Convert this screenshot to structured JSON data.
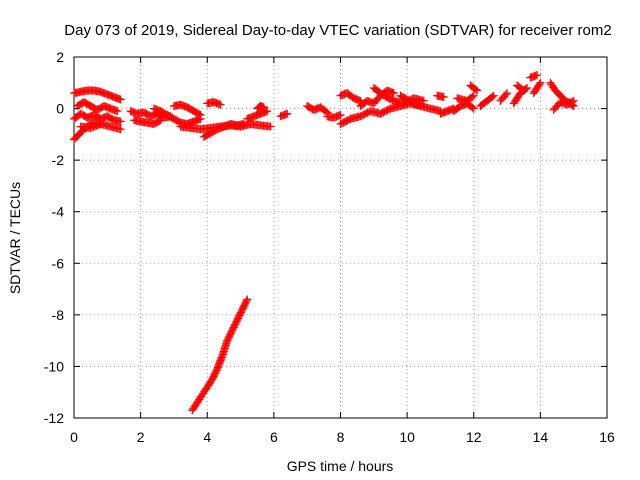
{
  "chart_data": {
    "type": "scatter",
    "title": "Day 073 of 2019, Sidereal Day-to-day VTEC variation (SDTVAR) for receiver rom2",
    "xlabel": "GPS time / hours",
    "ylabel": "SDTVAR / TECUs",
    "xlim": [
      0,
      16
    ],
    "ylim": [
      -12,
      2
    ],
    "xticks": [
      0,
      2,
      4,
      6,
      8,
      10,
      12,
      14,
      16
    ],
    "yticks": [
      2,
      0,
      -2,
      -4,
      -6,
      -8,
      -10,
      -12
    ],
    "grid": true,
    "marker": "plus",
    "color": "#ff0000",
    "segments": [
      {
        "x": [
          0.0,
          0.2,
          0.4,
          0.6,
          0.8,
          1.0,
          1.2,
          1.4
        ],
        "y": [
          0.6,
          0.65,
          0.7,
          0.7,
          0.65,
          0.55,
          0.45,
          0.35
        ]
      },
      {
        "x": [
          0.1,
          0.3,
          0.5,
          0.7,
          0.9,
          1.1,
          1.3
        ],
        "y": [
          0.1,
          0.25,
          0.1,
          -0.05,
          0.1,
          0.0,
          -0.1
        ]
      },
      {
        "x": [
          0.0,
          0.2,
          0.4,
          0.6,
          0.8,
          1.0,
          1.2,
          1.4
        ],
        "y": [
          -0.4,
          -0.2,
          -0.35,
          -0.25,
          -0.4,
          -0.3,
          -0.45,
          -0.5
        ]
      },
      {
        "x": [
          0.0,
          0.15,
          0.3,
          0.45,
          0.6,
          0.8
        ],
        "y": [
          -1.2,
          -1.0,
          -0.8,
          -0.65,
          -0.55,
          -0.6
        ]
      },
      {
        "x": [
          0.2,
          0.5,
          0.8,
          1.1,
          1.4
        ],
        "y": [
          -0.7,
          -0.75,
          -0.6,
          -0.7,
          -0.8
        ]
      },
      {
        "x": [
          1.7,
          1.9,
          2.1,
          2.3,
          2.5,
          2.7,
          2.9
        ],
        "y": [
          -0.1,
          -0.2,
          -0.15,
          -0.3,
          -0.2,
          -0.35,
          -0.3
        ]
      },
      {
        "x": [
          1.8,
          2.0,
          2.2,
          2.4,
          2.6
        ],
        "y": [
          -0.45,
          -0.5,
          -0.55,
          -0.6,
          -0.45
        ]
      },
      {
        "x": [
          2.4,
          2.6,
          2.8,
          3.0,
          3.2,
          3.4,
          3.6,
          3.8
        ],
        "y": [
          0.0,
          -0.1,
          -0.25,
          -0.4,
          -0.55,
          -0.6,
          -0.5,
          -0.4
        ]
      },
      {
        "x": [
          3.0,
          3.2,
          3.4,
          3.6,
          3.8
        ],
        "y": [
          0.1,
          0.15,
          0.05,
          -0.1,
          -0.25
        ]
      },
      {
        "x": [
          3.2,
          3.5,
          3.8,
          4.1,
          4.4,
          4.7,
          5.0,
          5.3,
          5.6,
          5.9
        ],
        "y": [
          -0.7,
          -0.75,
          -0.8,
          -0.75,
          -0.7,
          -0.65,
          -0.7,
          -0.6,
          -0.65,
          -0.7
        ]
      },
      {
        "x": [
          3.9,
          4.1,
          4.3,
          4.5,
          4.7,
          4.9,
          5.1
        ],
        "y": [
          -1.1,
          -0.95,
          -0.8,
          -0.7,
          -0.6,
          -0.65,
          -0.6
        ]
      },
      {
        "x": [
          4.0,
          4.2,
          4.4
        ],
        "y": [
          0.2,
          0.25,
          0.15
        ]
      },
      {
        "x": [
          5.2,
          5.4,
          5.6,
          5.8
        ],
        "y": [
          -0.4,
          -0.3,
          -0.2,
          -0.1
        ]
      },
      {
        "x": [
          5.5,
          5.6,
          5.7
        ],
        "y": [
          0.0,
          0.1,
          0.05
        ]
      },
      {
        "x": [
          6.2,
          6.4
        ],
        "y": [
          -0.3,
          -0.2
        ]
      },
      {
        "x": [
          7.0,
          7.2,
          7.4,
          7.6
        ],
        "y": [
          0.1,
          -0.05,
          0.05,
          -0.15
        ]
      },
      {
        "x": [
          7.6,
          7.8,
          8.0
        ],
        "y": [
          -0.3,
          -0.35,
          -0.25
        ]
      },
      {
        "x": [
          8.0,
          8.2,
          8.4,
          8.6
        ],
        "y": [
          0.5,
          0.6,
          0.4,
          0.3
        ]
      },
      {
        "x": [
          8.0,
          8.3,
          8.6,
          8.9,
          9.2,
          9.5,
          9.8,
          10.1,
          10.4,
          10.7,
          11.0
        ],
        "y": [
          -0.6,
          -0.4,
          -0.3,
          -0.1,
          -0.2,
          0.0,
          0.1,
          0.2,
          0.1,
          0.0,
          -0.1
        ]
      },
      {
        "x": [
          8.6,
          8.8,
          9.0,
          9.2,
          9.4,
          9.6
        ],
        "y": [
          0.1,
          0.3,
          0.2,
          0.5,
          0.7,
          0.6
        ]
      },
      {
        "x": [
          9.0,
          9.3,
          9.6,
          9.9,
          10.2,
          10.5
        ],
        "y": [
          0.8,
          0.5,
          0.3,
          0.2,
          0.4,
          0.3
        ]
      },
      {
        "x": [
          9.8,
          10.0,
          10.2,
          10.4
        ],
        "y": [
          0.5,
          0.35,
          0.2,
          0.1
        ]
      },
      {
        "x": [
          10.9,
          11.1
        ],
        "y": [
          0.5,
          0.45
        ]
      },
      {
        "x": [
          11.0,
          11.2,
          11.4
        ],
        "y": [
          -0.2,
          -0.1,
          0.0
        ]
      },
      {
        "x": [
          11.4,
          11.6,
          11.8,
          12.0
        ],
        "y": [
          -0.1,
          0.1,
          0.2,
          0.0
        ]
      },
      {
        "x": [
          11.5,
          11.8,
          12.0
        ],
        "y": [
          0.4,
          0.3,
          0.5
        ]
      },
      {
        "x": [
          11.9,
          12.1
        ],
        "y": [
          0.9,
          0.7
        ]
      },
      {
        "x": [
          12.2,
          12.4,
          12.6
        ],
        "y": [
          0.1,
          0.3,
          0.5
        ]
      },
      {
        "x": [
          12.8,
          13.0
        ],
        "y": [
          0.3,
          0.6
        ]
      },
      {
        "x": [
          13.2,
          13.4,
          13.6
        ],
        "y": [
          0.2,
          0.6,
          0.8
        ]
      },
      {
        "x": [
          13.3,
          13.5
        ],
        "y": [
          0.9,
          0.7
        ]
      },
      {
        "x": [
          13.7,
          13.9
        ],
        "y": [
          1.2,
          1.3
        ]
      },
      {
        "x": [
          13.8,
          14.0
        ],
        "y": [
          0.6,
          1.0
        ]
      },
      {
        "x": [
          14.3,
          14.45,
          14.6,
          14.75,
          14.9,
          15.0
        ],
        "y": [
          1.0,
          0.7,
          0.5,
          0.3,
          0.2,
          0.1
        ]
      },
      {
        "x": [
          14.4,
          14.6,
          14.8,
          15.0
        ],
        "y": [
          -0.05,
          0.25,
          0.15,
          0.3
        ]
      },
      {
        "x": [
          3.55,
          3.7,
          3.85,
          4.0,
          4.15,
          4.3,
          4.45,
          4.6,
          4.75,
          4.9,
          5.05,
          5.2
        ],
        "y": [
          -11.7,
          -11.4,
          -11.1,
          -10.8,
          -10.5,
          -10.1,
          -9.6,
          -9.0,
          -8.6,
          -8.2,
          -7.8,
          -7.4
        ]
      }
    ]
  }
}
